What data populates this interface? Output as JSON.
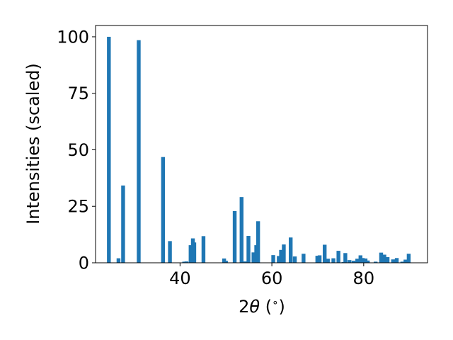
{
  "chart_data": {
    "type": "bar",
    "title": "",
    "xlabel_prefix": "2",
    "xlabel_theta": "θ",
    "xlabel_suffix": " (",
    "xlabel_degree": "∘",
    "xlabel_close": ")",
    "ylabel": "Intensities (scaled)",
    "xlim": [
      21.6,
      93.9
    ],
    "ylim": [
      0,
      105
    ],
    "xticks": [
      "40",
      "60",
      "80"
    ],
    "xtick_values": [
      40,
      60,
      80
    ],
    "yticks": [
      "0",
      "25",
      "50",
      "75",
      "100"
    ],
    "ytick_values": [
      0,
      25,
      50,
      75,
      100
    ],
    "grid": false,
    "bar_color": "#1f77b4",
    "x": [
      24.5,
      26.6,
      27.6,
      31.0,
      36.3,
      37.8,
      40.9,
      41.4,
      42.3,
      42.8,
      43.1,
      45.1,
      49.6,
      50.0,
      51.9,
      53.4,
      54.2,
      54.9,
      56.0,
      56.6,
      57.0,
      60.3,
      61.5,
      62.0,
      62.6,
      64.1,
      65.0,
      66.9,
      69.9,
      70.4,
      71.5,
      72.2,
      73.4,
      74.5,
      75.6,
      76.0,
      76.9,
      77.8,
      78.6,
      79.3,
      79.8,
      80.4,
      80.9,
      82.6,
      83.8,
      84.5,
      85.2,
      86.4,
      87.2,
      88.4,
      89.1,
      89.8
    ],
    "values": [
      100.0,
      2.0,
      34.2,
      98.5,
      46.8,
      9.6,
      0.5,
      0.6,
      7.8,
      10.8,
      9.0,
      11.8,
      1.9,
      0.9,
      22.9,
      29.1,
      0.6,
      11.9,
      4.6,
      7.8,
      18.4,
      3.4,
      3.0,
      5.7,
      8.1,
      11.2,
      2.8,
      4.0,
      3.1,
      3.3,
      8.0,
      1.8,
      2.0,
      5.3,
      0.3,
      4.3,
      1.2,
      0.9,
      1.8,
      3.3,
      2.1,
      1.9,
      1.0,
      0.5,
      4.5,
      3.6,
      2.5,
      1.5,
      2.1,
      0.5,
      1.4,
      4.0
    ]
  }
}
